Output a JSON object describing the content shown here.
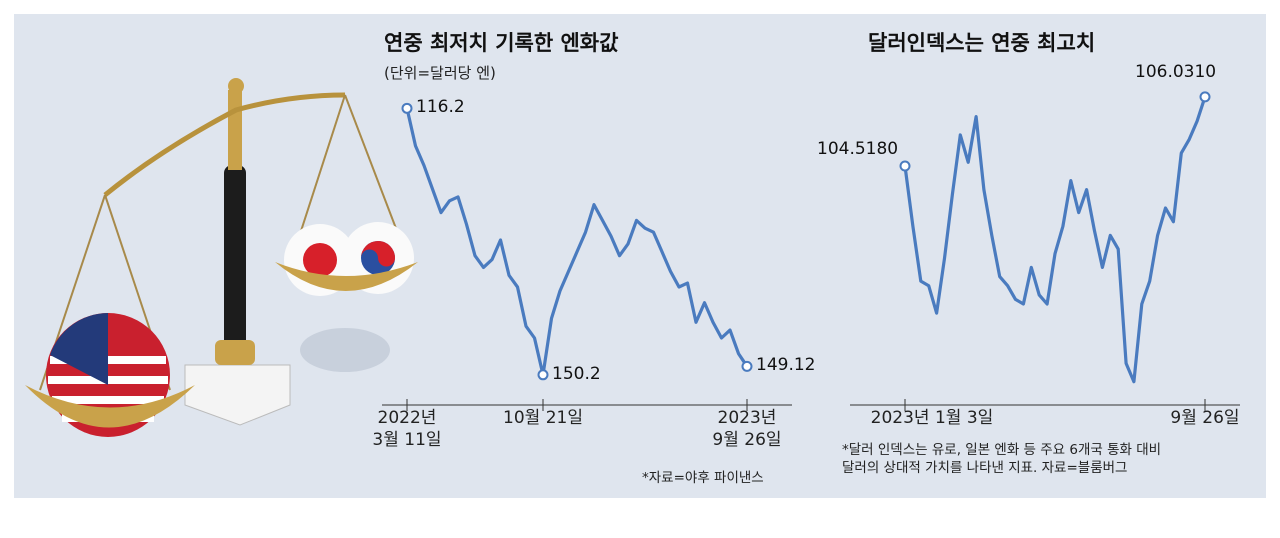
{
  "chart_data": [
    {
      "type": "line",
      "title": "연중 최저치 기록한 엔화값",
      "subtitle": "(단위=달러당 엔)",
      "categories": [
        "2022년\n3월 11일",
        null,
        null,
        null,
        null,
        null,
        null,
        null,
        null,
        null,
        null,
        null,
        null,
        null,
        null,
        null,
        "10월 21일",
        null,
        null,
        null,
        null,
        null,
        null,
        null,
        null,
        null,
        null,
        null,
        null,
        null,
        null,
        null,
        null,
        null,
        null,
        null,
        null,
        null,
        null,
        null,
        "2023년\n9월 26일"
      ],
      "values": [
        116.2,
        121.0,
        123.5,
        126.5,
        129.5,
        128.0,
        127.5,
        131.0,
        135.0,
        136.5,
        135.5,
        133.0,
        137.5,
        139.0,
        144.0,
        145.5,
        150.2,
        143.0,
        139.5,
        137.0,
        134.5,
        132.0,
        128.5,
        130.5,
        132.5,
        135.0,
        133.5,
        130.5,
        131.5,
        132.0,
        134.5,
        137.0,
        139.0,
        138.5,
        143.5,
        141.0,
        143.5,
        145.5,
        144.5,
        147.5,
        149.12
      ],
      "value_labels": [
        "116.2",
        null,
        null,
        null,
        null,
        null,
        null,
        null,
        null,
        null,
        null,
        null,
        null,
        null,
        null,
        null,
        "150.2",
        null,
        null,
        null,
        null,
        null,
        null,
        null,
        null,
        null,
        null,
        null,
        null,
        null,
        null,
        null,
        null,
        null,
        null,
        null,
        null,
        null,
        null,
        null,
        "149.12"
      ],
      "color": "#4a7bbf",
      "ylim": [
        151.5,
        114.5
      ],
      "note": "*자료=야후 파이낸스"
    },
    {
      "type": "line",
      "title": "달러인덱스는 연중 최고치",
      "categories": [
        "2023년 1월 3일",
        null,
        null,
        null,
        null,
        null,
        null,
        null,
        null,
        null,
        null,
        null,
        null,
        null,
        null,
        null,
        null,
        null,
        null,
        null,
        null,
        null,
        null,
        null,
        null,
        null,
        null,
        null,
        null,
        null,
        null,
        null,
        null,
        null,
        null,
        null,
        null,
        null,
        "9월 26일"
      ],
      "values": [
        104.518,
        103.2,
        102.0,
        101.9,
        101.3,
        102.5,
        103.9,
        105.2,
        104.6,
        105.6,
        104.0,
        103.0,
        102.1,
        101.9,
        101.6,
        101.5,
        102.3,
        101.7,
        101.5,
        102.6,
        103.2,
        104.2,
        103.5,
        104.0,
        103.1,
        102.3,
        103.0,
        102.7,
        100.2,
        99.8,
        101.5,
        102.0,
        103.0,
        103.6,
        103.3,
        104.8,
        105.1,
        105.5,
        106.031
      ],
      "value_labels": [
        "104.5180",
        null,
        null,
        null,
        null,
        null,
        null,
        null,
        null,
        null,
        null,
        null,
        null,
        null,
        null,
        null,
        null,
        null,
        null,
        null,
        null,
        null,
        null,
        null,
        null,
        null,
        null,
        null,
        null,
        null,
        null,
        null,
        null,
        null,
        null,
        null,
        null,
        null,
        "106.0310"
      ],
      "color": "#4a7bbf",
      "ylim": [
        99.4,
        106.4
      ],
      "note": "*달러 인덱스는 유로, 일본 엔화 등 주요 6개국 통화 대비\n달러의 상대적 가치를 나타낸 지표. 자료=블룸버그"
    }
  ]
}
